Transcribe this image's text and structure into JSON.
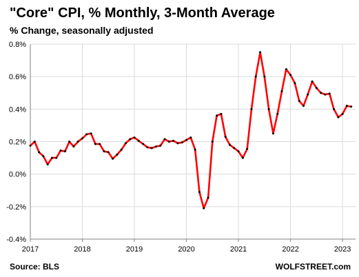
{
  "chart_data": {
    "type": "line",
    "title": "\"Core\" CPI, % Monthly, 3-Month Average",
    "subtitle": "% Change, seasonally adjusted",
    "source": "Source: BLS",
    "brand": "WOLFSTREET.com",
    "ylim": [
      -0.4,
      0.8
    ],
    "yticks": [
      "-0.4%",
      "-0.2%",
      "0.0%",
      "0.2%",
      "0.4%",
      "0.6%",
      "0.8%"
    ],
    "ytick_values": [
      -0.4,
      -0.2,
      0.0,
      0.2,
      0.4,
      0.6,
      0.8
    ],
    "xticks": [
      "2017",
      "2018",
      "2019",
      "2020",
      "2021",
      "2022",
      "2023"
    ],
    "xtick_values": [
      2017,
      2018,
      2019,
      2020,
      2021,
      2022,
      2023
    ],
    "grid": true,
    "line_color": "#ff0000",
    "marker_color": "#000000",
    "series": [
      {
        "x": [
          2017.0,
          2017.083,
          2017.167,
          2017.25,
          2017.333,
          2017.417,
          2017.5,
          2017.583,
          2017.667,
          2017.75,
          2017.833,
          2017.917,
          2018.0,
          2018.083,
          2018.167,
          2018.25,
          2018.333,
          2018.417,
          2018.5,
          2018.583,
          2018.667,
          2018.75,
          2018.833,
          2018.917,
          2019.0,
          2019.083,
          2019.167,
          2019.25,
          2019.333,
          2019.417,
          2019.5,
          2019.583,
          2019.667,
          2019.75,
          2019.833,
          2019.917,
          2020.0,
          2020.083,
          2020.167,
          2020.25,
          2020.333,
          2020.417,
          2020.5,
          2020.583,
          2020.667,
          2020.75,
          2020.833,
          2020.917,
          2021.0,
          2021.083,
          2021.167,
          2021.25,
          2021.333,
          2021.417,
          2021.5,
          2021.583,
          2021.667,
          2021.75,
          2021.833,
          2021.917,
          2022.0,
          2022.083,
          2022.167,
          2022.25,
          2022.333,
          2022.417,
          2022.5,
          2022.583,
          2022.667,
          2022.75,
          2022.833,
          2022.917,
          2023.0,
          2023.083,
          2023.167
        ],
        "values": [
          0.175,
          0.2,
          0.135,
          0.11,
          0.06,
          0.1,
          0.1,
          0.145,
          0.14,
          0.2,
          0.17,
          0.2,
          0.22,
          0.245,
          0.25,
          0.185,
          0.185,
          0.14,
          0.135,
          0.095,
          0.12,
          0.15,
          0.19,
          0.215,
          0.225,
          0.205,
          0.185,
          0.165,
          0.16,
          0.17,
          0.175,
          0.215,
          0.2,
          0.205,
          0.19,
          0.195,
          0.21,
          0.225,
          0.15,
          -0.11,
          -0.21,
          -0.145,
          0.2,
          0.36,
          0.37,
          0.23,
          0.18,
          0.16,
          0.14,
          0.1,
          0.155,
          0.4,
          0.6,
          0.75,
          0.6,
          0.4,
          0.25,
          0.37,
          0.51,
          0.645,
          0.61,
          0.56,
          0.45,
          0.42,
          0.49,
          0.57,
          0.53,
          0.5,
          0.49,
          0.495,
          0.4,
          0.35,
          0.37,
          0.42,
          0.415
        ]
      }
    ]
  }
}
